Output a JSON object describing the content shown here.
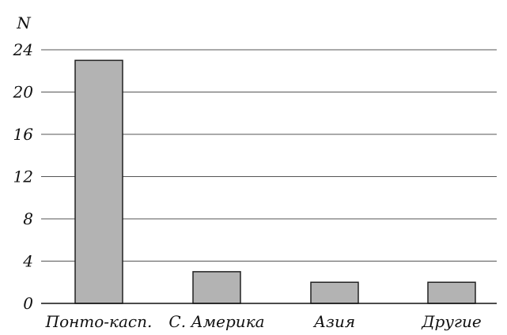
{
  "chart_data": {
    "type": "bar",
    "ylabel": "N",
    "xlabel": "",
    "categories": [
      "Понто-касп.",
      "С. Америка",
      "Азия",
      "Другие"
    ],
    "values": [
      23,
      3,
      2,
      2
    ],
    "ylim": [
      0,
      24
    ],
    "yticks": [
      "0",
      "4",
      "8",
      "12",
      "16",
      "20",
      "24"
    ],
    "grid": true,
    "bar_color": "#b3b3b3",
    "bar_outline": "#222222",
    "grid_color": "#555555"
  }
}
